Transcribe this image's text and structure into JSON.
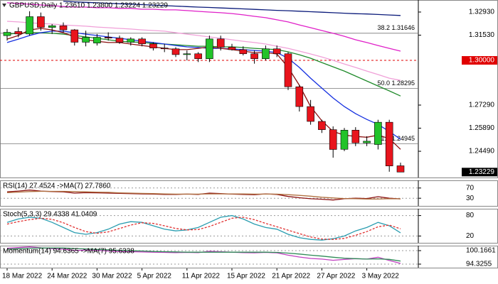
{
  "chart_data": [
    {
      "type": "candlestick",
      "title": "GBPUSD,Daily  1.23610 1.23800 1.23224 1.23229",
      "categories": [
        "18 Mar 2022",
        null,
        null,
        null,
        "24 Mar 2022",
        null,
        null,
        null,
        "30 Mar 2022",
        null,
        null,
        null,
        "5 Apr 2022",
        null,
        null,
        null,
        "11 Apr 2022",
        null,
        null,
        null,
        "15 Apr 2022",
        null,
        null,
        null,
        "21 Apr 2022",
        null,
        null,
        null,
        "27 Apr 2022",
        null,
        null,
        null,
        "3 May 2022",
        null,
        null,
        null
      ],
      "open": [
        1.315,
        1.3175,
        1.316,
        1.3265,
        1.32,
        1.321,
        1.3185,
        1.311,
        1.3105,
        1.314,
        1.3135,
        1.311,
        1.313,
        1.31,
        1.3075,
        1.307,
        1.3035,
        1.304,
        1.301,
        1.313,
        1.308,
        1.3065,
        1.304,
        1.301,
        1.307,
        1.304,
        1.284,
        1.272,
        1.263,
        1.258,
        1.2461,
        1.2577,
        1.25,
        1.249,
        1.2625,
        1.2361
      ],
      "high": [
        1.319,
        1.32,
        1.3298,
        1.329,
        1.322,
        1.323,
        1.319,
        1.318,
        1.316,
        1.317,
        1.315,
        1.314,
        1.314,
        1.311,
        1.31,
        1.308,
        1.306,
        1.305,
        1.315,
        1.315,
        1.31,
        1.3085,
        1.306,
        1.309,
        1.309,
        1.305,
        1.285,
        1.276,
        1.264,
        1.26,
        1.259,
        1.2595,
        1.254,
        1.264,
        1.264,
        1.238
      ],
      "low": [
        1.312,
        1.314,
        1.315,
        1.318,
        1.316,
        1.317,
        1.309,
        1.3085,
        1.309,
        1.312,
        1.31,
        1.309,
        1.3085,
        1.306,
        1.305,
        1.302,
        1.3,
        1.299,
        1.299,
        1.306,
        1.306,
        1.303,
        1.298,
        1.3,
        1.302,
        1.282,
        1.269,
        1.261,
        1.256,
        1.241,
        1.245,
        1.248,
        1.248,
        1.246,
        1.2325,
        1.23224
      ],
      "close": [
        1.317,
        1.316,
        1.3265,
        1.32,
        1.321,
        1.3185,
        1.311,
        1.314,
        1.314,
        1.3135,
        1.311,
        1.313,
        1.31,
        1.3075,
        1.307,
        1.3035,
        1.304,
        1.301,
        1.313,
        1.308,
        1.3065,
        1.304,
        1.301,
        1.307,
        1.304,
        1.284,
        1.272,
        1.263,
        1.258,
        1.246,
        1.2577,
        1.25,
        1.251,
        1.2625,
        1.236,
        1.23229
      ],
      "up_color": "#22c32a",
      "down_color": "#e8141c",
      "ylim": [
        1.229,
        1.3366
      ],
      "yticks": [
        {
          "value": 1.3293,
          "label": "1.32930"
        },
        {
          "value": 1.3153,
          "label": "1.31530"
        },
        {
          "value": 1.2729,
          "label": "1.27290"
        },
        {
          "value": 1.2589,
          "label": "1.25890"
        },
        {
          "value": 1.2449,
          "label": "1.24490"
        }
      ],
      "levels": [
        {
          "value": 1.31646,
          "label": "38.2 1.31646"
        },
        {
          "value": 1.28295,
          "label": "50.0 1.28295"
        },
        {
          "value": 1.24945,
          "label": "61.8 1.24945"
        }
      ],
      "alert": {
        "value": 1.3,
        "label": "1.30000",
        "color": "#e00000"
      },
      "lines": [
        {
          "color": "#0a1a7a",
          "values": [
            null,
            null,
            null,
            null,
            null,
            1.3358,
            1.3355,
            1.3352,
            1.3349,
            1.3346,
            1.3343,
            1.3341,
            1.3338,
            1.3335,
            1.3332,
            1.3329,
            1.3326,
            1.3323,
            1.3321,
            1.3318,
            1.3315,
            1.3312,
            1.3309,
            1.3306,
            1.3303,
            1.3301,
            1.3298,
            1.3295,
            1.3292,
            1.3289,
            1.3286,
            1.3283,
            1.3281,
            1.3278,
            1.3275,
            1.3272
          ]
        },
        {
          "color": "#e020c8",
          "values": [
            1.3349,
            1.3345,
            1.334,
            1.3336,
            1.3332,
            1.3327,
            1.3323,
            1.3323,
            1.3319,
            1.3319,
            1.3315,
            1.3315,
            1.331,
            1.331,
            1.3306,
            1.3306,
            1.3302,
            1.3297,
            1.3293,
            1.3289,
            1.3284,
            1.3276,
            1.3267,
            1.3259,
            1.3246,
            1.3233,
            1.3215,
            1.3198,
            1.3181,
            1.3164,
            1.3146,
            1.3125,
            1.3108,
            1.309,
            1.3073,
            1.3056
          ]
        },
        {
          "color": "#f0a0d8",
          "values": [
            1.3237,
            1.3233,
            1.3228,
            1.3224,
            1.322,
            1.3215,
            1.3211,
            1.3207,
            1.3202,
            1.3198,
            1.3194,
            1.319,
            1.3185,
            1.3181,
            1.3177,
            1.3168,
            1.3159,
            1.3151,
            1.3142,
            1.3134,
            1.3125,
            1.3116,
            1.3108,
            1.3099,
            1.3086,
            1.3073,
            1.3056,
            1.3039,
            1.3021,
            1.3,
            1.2978,
            1.2957,
            1.2935,
            1.2914,
            1.2892,
            1.2879
          ]
        },
        {
          "color": "#1f8a2a",
          "values": [
            1.3159,
            1.3164,
            1.3168,
            1.3168,
            1.3164,
            1.3159,
            1.3151,
            1.3142,
            1.3134,
            1.3125,
            1.3116,
            1.3112,
            1.3108,
            1.3103,
            1.3099,
            1.3095,
            1.309,
            1.3086,
            1.3086,
            1.3082,
            1.3082,
            1.3078,
            1.3073,
            1.3069,
            1.3065,
            1.3052,
            1.3034,
            1.3013,
            1.2987,
            1.2961,
            1.2935,
            1.2905,
            1.2875,
            1.2845,
            1.2815,
            1.2784
          ]
        },
        {
          "color": "#1530e0",
          "values": [
            1.3108,
            1.3129,
            1.3151,
            1.3168,
            1.3177,
            1.3177,
            1.3168,
            1.3159,
            1.3151,
            1.3142,
            1.3134,
            1.3125,
            1.3116,
            1.3108,
            1.3099,
            1.309,
            1.3082,
            1.3078,
            1.3073,
            1.3073,
            1.3069,
            1.3065,
            1.306,
            1.3056,
            1.3047,
            1.3013,
            1.2957,
            1.2892,
            1.2832,
            1.2772,
            1.272,
            1.2677,
            1.2642,
            1.2612,
            1.2569,
            1.2522
          ]
        },
        {
          "color": "#8b1010",
          "values": [
            1.3129,
            1.3151,
            1.3185,
            1.3194,
            1.3185,
            1.3168,
            1.3142,
            1.3125,
            1.3116,
            1.3108,
            1.3108,
            1.3099,
            1.309,
            1.3082,
            1.3073,
            1.3065,
            1.3065,
            1.3073,
            1.3082,
            1.3073,
            1.3065,
            1.3056,
            1.3047,
            1.3047,
            1.3039,
            1.2957,
            1.2849,
            1.272,
            1.2634,
            1.2569,
            1.2547,
            1.2539,
            1.2534,
            1.2547,
            1.2526,
            1.2461
          ]
        }
      ]
    },
    {
      "type": "line",
      "title": "RSI(14) 27.4524  ->MA(7) 27.7860",
      "ylim": [
        0,
        100
      ],
      "yticks": [
        70,
        30
      ],
      "grid": true,
      "series": [
        {
          "color": "#8b1010",
          "values": [
            55,
            58,
            62,
            58,
            56,
            55,
            50,
            52,
            51,
            50,
            49,
            48,
            47,
            46,
            45,
            45,
            46,
            45,
            50,
            48,
            46,
            45,
            44,
            47,
            45,
            37,
            32,
            28,
            26,
            23,
            28,
            30,
            29,
            36,
            30,
            27.4524
          ]
        },
        {
          "color": "#b07040",
          "values": [
            52,
            54,
            56,
            57,
            57,
            57,
            56,
            55,
            54,
            53,
            51,
            50,
            49,
            48,
            47,
            46,
            46,
            46,
            47,
            47,
            47,
            47,
            46,
            46,
            46,
            44,
            41,
            38,
            34,
            31,
            29,
            28,
            27,
            27,
            28,
            27.786
          ]
        }
      ]
    },
    {
      "type": "line",
      "title": "Stoch(5,3,3) 29.4338 41.0409",
      "ylim": [
        0,
        100
      ],
      "yticks": [
        80,
        20
      ],
      "grid": true,
      "series": [
        {
          "color": "#2a9db0",
          "values": [
            60,
            70,
            75,
            72,
            60,
            45,
            30,
            25,
            30,
            40,
            55,
            62,
            60,
            50,
            40,
            35,
            38,
            45,
            60,
            75,
            80,
            70,
            55,
            45,
            40,
            25,
            15,
            10,
            8,
            12,
            20,
            35,
            45,
            60,
            50,
            29.4338
          ]
        },
        {
          "color": "#e03030",
          "dash": true,
          "values": [
            55,
            62,
            68,
            72,
            69,
            59,
            45,
            33,
            28,
            32,
            42,
            52,
            59,
            57,
            50,
            42,
            38,
            39,
            48,
            60,
            72,
            75,
            68,
            57,
            47,
            37,
            27,
            17,
            11,
            10,
            13,
            22,
            33,
            47,
            52,
            41.0409
          ]
        }
      ]
    },
    {
      "type": "line",
      "title": "Momentum(14) 94.6365  ->MA(7) 95.6338",
      "ylim": [
        92.79,
        102.32
      ],
      "yticks": [
        100.1661,
        94.3255
      ],
      "grid": true,
      "series": [
        {
          "color": "#c040c0",
          "values": [
            101.2,
            101.5,
            101.8,
            101.4,
            101.0,
            100.8,
            100.2,
            100.4,
            100.3,
            100.0,
            99.8,
            99.7,
            99.6,
            99.5,
            99.4,
            99.3,
            99.4,
            99.3,
            99.9,
            99.7,
            99.5,
            99.3,
            99.2,
            99.4,
            99.2,
            98.2,
            97.4,
            96.8,
            96.5,
            96.0,
            96.4,
            96.7,
            96.5,
            97.3,
            95.9,
            94.6365
          ]
        },
        {
          "color": "#2e8b57",
          "values": [
            100.8,
            101.0,
            101.2,
            101.3,
            101.3,
            101.3,
            101.1,
            100.9,
            100.7,
            100.5,
            100.3,
            100.1,
            100.0,
            99.8,
            99.7,
            99.6,
            99.5,
            99.5,
            99.5,
            99.5,
            99.5,
            99.5,
            99.5,
            99.5,
            99.4,
            99.1,
            98.7,
            98.2,
            97.8,
            97.3,
            96.9,
            96.7,
            96.5,
            96.6,
            96.4,
            95.6338
          ]
        }
      ]
    }
  ]
}
